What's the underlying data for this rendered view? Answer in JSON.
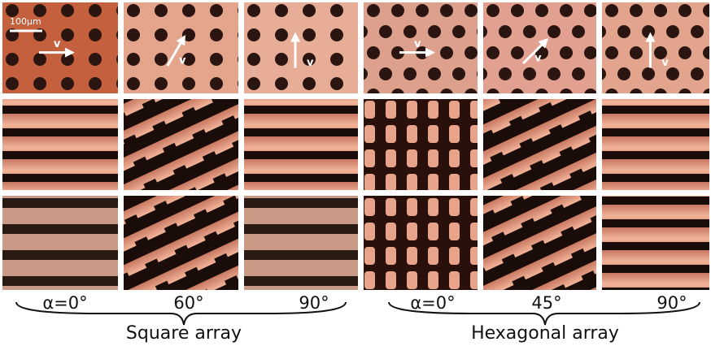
{
  "scale_bar": "100µm",
  "arrows": [
    {
      "label": "v"
    },
    {
      "label": "v"
    },
    {
      "label": "v"
    },
    {
      "label": "v"
    },
    {
      "label": "v"
    },
    {
      "label": "v"
    }
  ],
  "columns": [
    {
      "label": "α=0°"
    },
    {
      "label": "60°"
    },
    {
      "label": "90°"
    },
    {
      "label": "α=0°"
    },
    {
      "label": "45°"
    },
    {
      "label": "90°"
    }
  ],
  "groups": [
    {
      "label": "Square array"
    },
    {
      "label": "Hexagonal array"
    }
  ]
}
